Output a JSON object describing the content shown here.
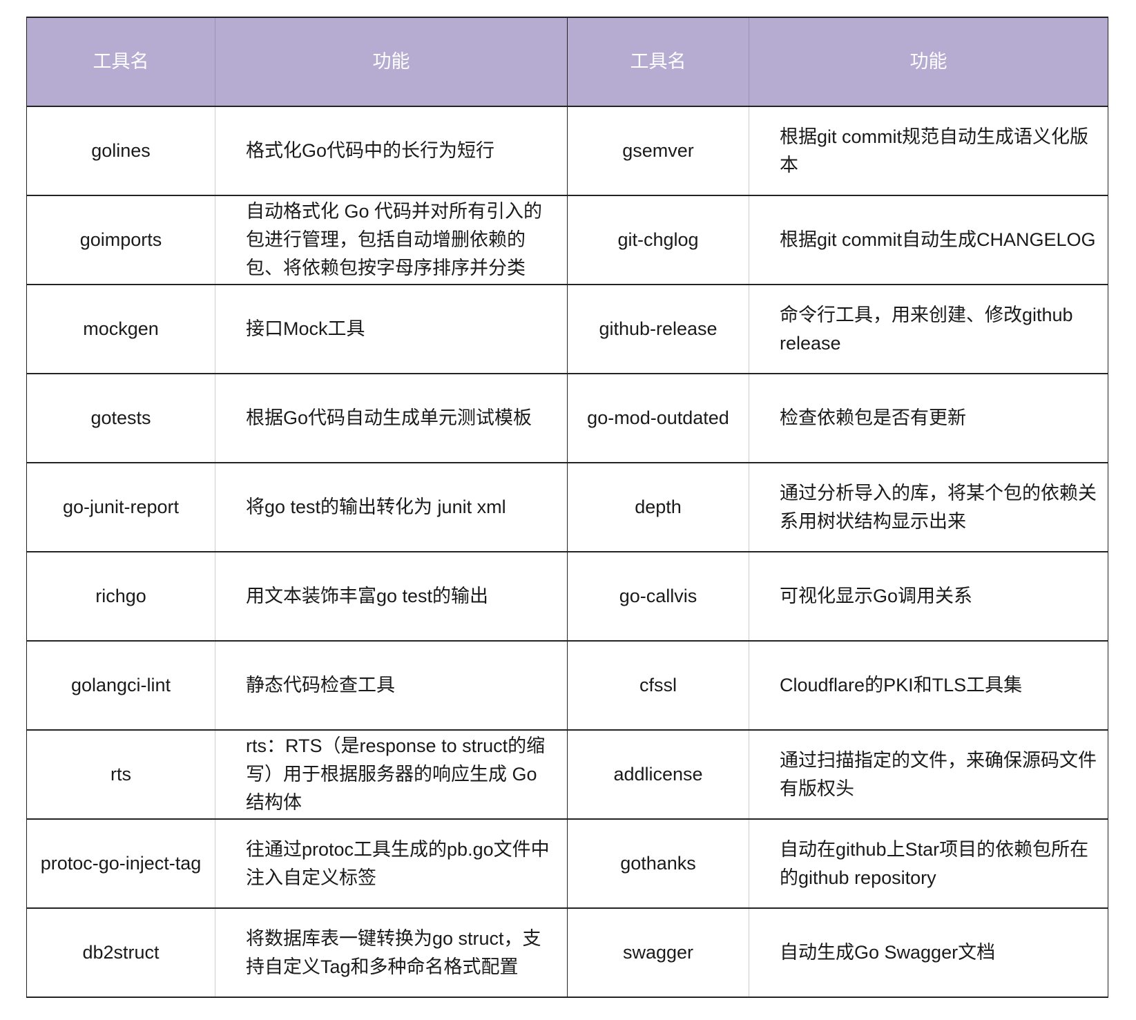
{
  "header": {
    "col1": "工具名",
    "col2": "功能",
    "col3": "工具名",
    "col4": "功能",
    "header_color": "#b6acd2"
  },
  "rows": [
    {
      "tool1": "golines",
      "func1": "格式化Go代码中的长行为短行",
      "tool2": "gsemver",
      "func2": "根据git commit规范自动生成语义化版本"
    },
    {
      "tool1": "goimports",
      "func1": "自动格式化 Go 代码并对所有引入的包进行管理，包括自动增删依赖的包、将依赖包按字母序排序并分类",
      "tool2": "git-chglog",
      "func2": "根据git commit自动生成CHANGELOG"
    },
    {
      "tool1": "mockgen",
      "func1": "接口Mock工具",
      "tool2": "github-release",
      "func2": "命令行工具，用来创建、修改github release"
    },
    {
      "tool1": "gotests",
      "func1": "根据Go代码自动生成单元测试模板",
      "tool2": "go-mod-outdated",
      "func2": "检查依赖包是否有更新"
    },
    {
      "tool1": "go-junit-report",
      "func1": "将go test的输出转化为 junit xml",
      "tool2": "depth",
      "func2": "通过分析导入的库，将某个包的依赖关系用树状结构显示出来"
    },
    {
      "tool1": "richgo",
      "func1": "用文本装饰丰富go test的输出",
      "tool2": "go-callvis",
      "func2": "可视化显示Go调用关系"
    },
    {
      "tool1": "golangci-lint",
      "func1": "静态代码检查工具",
      "tool2": "cfssl",
      "func2": "Cloudflare的PKI和TLS工具集"
    },
    {
      "tool1": "rts",
      "func1": "rts：RTS（是response to struct的缩写）用于根据服务器的响应生成 Go 结构体",
      "tool2": "addlicense",
      "func2": "通过扫描指定的文件，来确保源码文件有版权头"
    },
    {
      "tool1": "protoc-go-inject-tag",
      "func1": "往通过protoc工具生成的pb.go文件中注入自定义标签",
      "tool2": "gothanks",
      "func2": "自动在github上Star项目的依赖包所在的github repository"
    },
    {
      "tool1": "db2struct",
      "func1": "将数据库表一键转换为go struct，支持自定义Tag和多种命名格式配置",
      "tool2": "swagger",
      "func2": "自动生成Go Swagger文档"
    }
  ]
}
